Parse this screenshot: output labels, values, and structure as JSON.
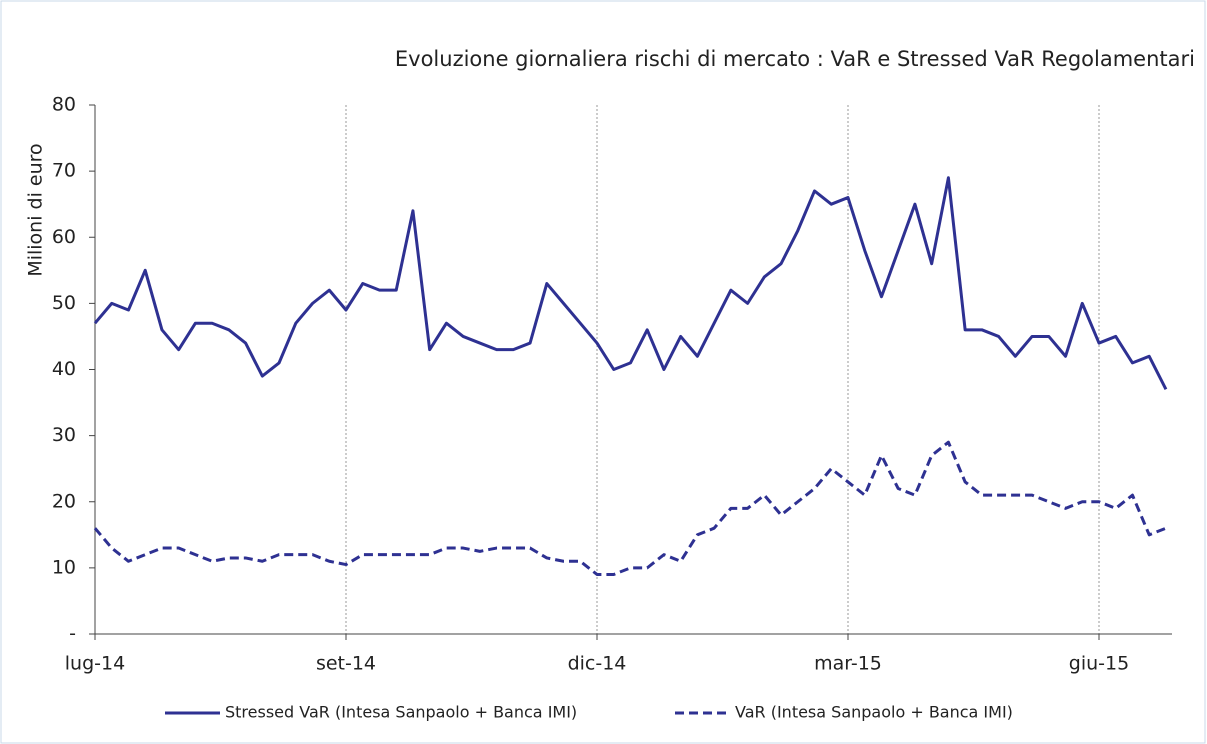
{
  "chart_data": {
    "type": "line",
    "title": "Evoluzione giornaliera rischi di mercato : VaR e Stressed VaR Regolamentari",
    "y_label": "Milioni di euro",
    "categories": [
      "lug-14",
      null,
      null,
      null,
      null,
      null,
      null,
      null,
      null,
      null,
      null,
      null,
      null,
      null,
      null,
      "set-14",
      null,
      null,
      null,
      null,
      null,
      null,
      null,
      null,
      null,
      null,
      null,
      null,
      null,
      null,
      "dic-14",
      null,
      null,
      null,
      null,
      null,
      null,
      null,
      null,
      null,
      null,
      null,
      null,
      null,
      null,
      "mar-15",
      null,
      null,
      null,
      null,
      null,
      null,
      null,
      null,
      null,
      null,
      null,
      null,
      null,
      null,
      "giu-15",
      null,
      null,
      null,
      null
    ],
    "series": [
      {
        "name": "Stressed VaR (Intesa Sanpaolo + Banca IMI)",
        "color": "#2e3192",
        "line_style": "solid",
        "values": [
          47,
          50,
          49,
          55,
          46,
          43,
          47,
          47,
          46,
          44,
          39,
          41,
          47,
          50,
          52,
          49,
          53,
          52,
          52,
          64,
          43,
          47,
          45,
          44,
          43,
          43,
          44,
          53,
          50,
          47,
          44,
          40,
          41,
          46,
          40,
          45,
          42,
          47,
          52,
          50,
          54,
          56,
          61,
          67,
          65,
          66,
          58,
          51,
          58,
          65,
          56,
          69,
          46,
          46,
          45,
          42,
          45,
          45,
          42,
          50,
          44,
          45,
          41,
          42,
          37
        ]
      },
      {
        "name": "VaR (Intesa Sanpaolo + Banca IMI)",
        "color": "#2e3192",
        "line_style": "dashed",
        "values": [
          16,
          13,
          11,
          12,
          13,
          13,
          12,
          11,
          11.5,
          11.5,
          11,
          12,
          12,
          12,
          11,
          10.5,
          12,
          12,
          12,
          12,
          12,
          13,
          13,
          12.5,
          13,
          13,
          13,
          11.5,
          11,
          11,
          9,
          9,
          10,
          10,
          12,
          11,
          15,
          16,
          19,
          19,
          21,
          18,
          20,
          22,
          25,
          23,
          21,
          27,
          22,
          21,
          27,
          29,
          23,
          21,
          21,
          21,
          21,
          20,
          19,
          20,
          20,
          19,
          21,
          15,
          16
        ]
      }
    ],
    "ylim": [
      0,
      80
    ],
    "yticks": [
      {
        "value": 0,
        "label": "-"
      },
      10,
      20,
      30,
      40,
      50,
      60,
      70,
      80
    ],
    "x_grid": true,
    "legend": "bottom"
  }
}
